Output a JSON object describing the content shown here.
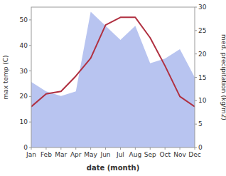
{
  "chart_data": {
    "type": "line",
    "categories": [
      "Jan",
      "Feb",
      "Mar",
      "Apr",
      "May",
      "Jun",
      "Jul",
      "Aug",
      "Sep",
      "Oct",
      "Nov",
      "Dec"
    ],
    "xlabel": "date (month)",
    "ylabel": "max temp (C)",
    "y2label": "med. precipitation (kg/m2)",
    "series": [
      {
        "type": "area",
        "color": "#b8c4f0",
        "axis": "y2",
        "values": [
          14,
          12,
          11,
          12,
          29,
          26,
          23,
          26,
          18,
          19,
          21,
          15
        ]
      },
      {
        "type": "line",
        "color": "#b03040",
        "values": [
          16,
          21,
          22,
          28,
          35,
          48,
          51,
          51,
          43,
          32,
          20,
          16
        ]
      }
    ],
    "ylim": [
      0,
      55
    ],
    "yticks": [
      0,
      10,
      20,
      30,
      40,
      50
    ],
    "y2lim": [
      0,
      30
    ],
    "y2ticks": [
      0,
      5,
      10,
      15,
      20,
      25,
      30
    ],
    "grid": false
  }
}
